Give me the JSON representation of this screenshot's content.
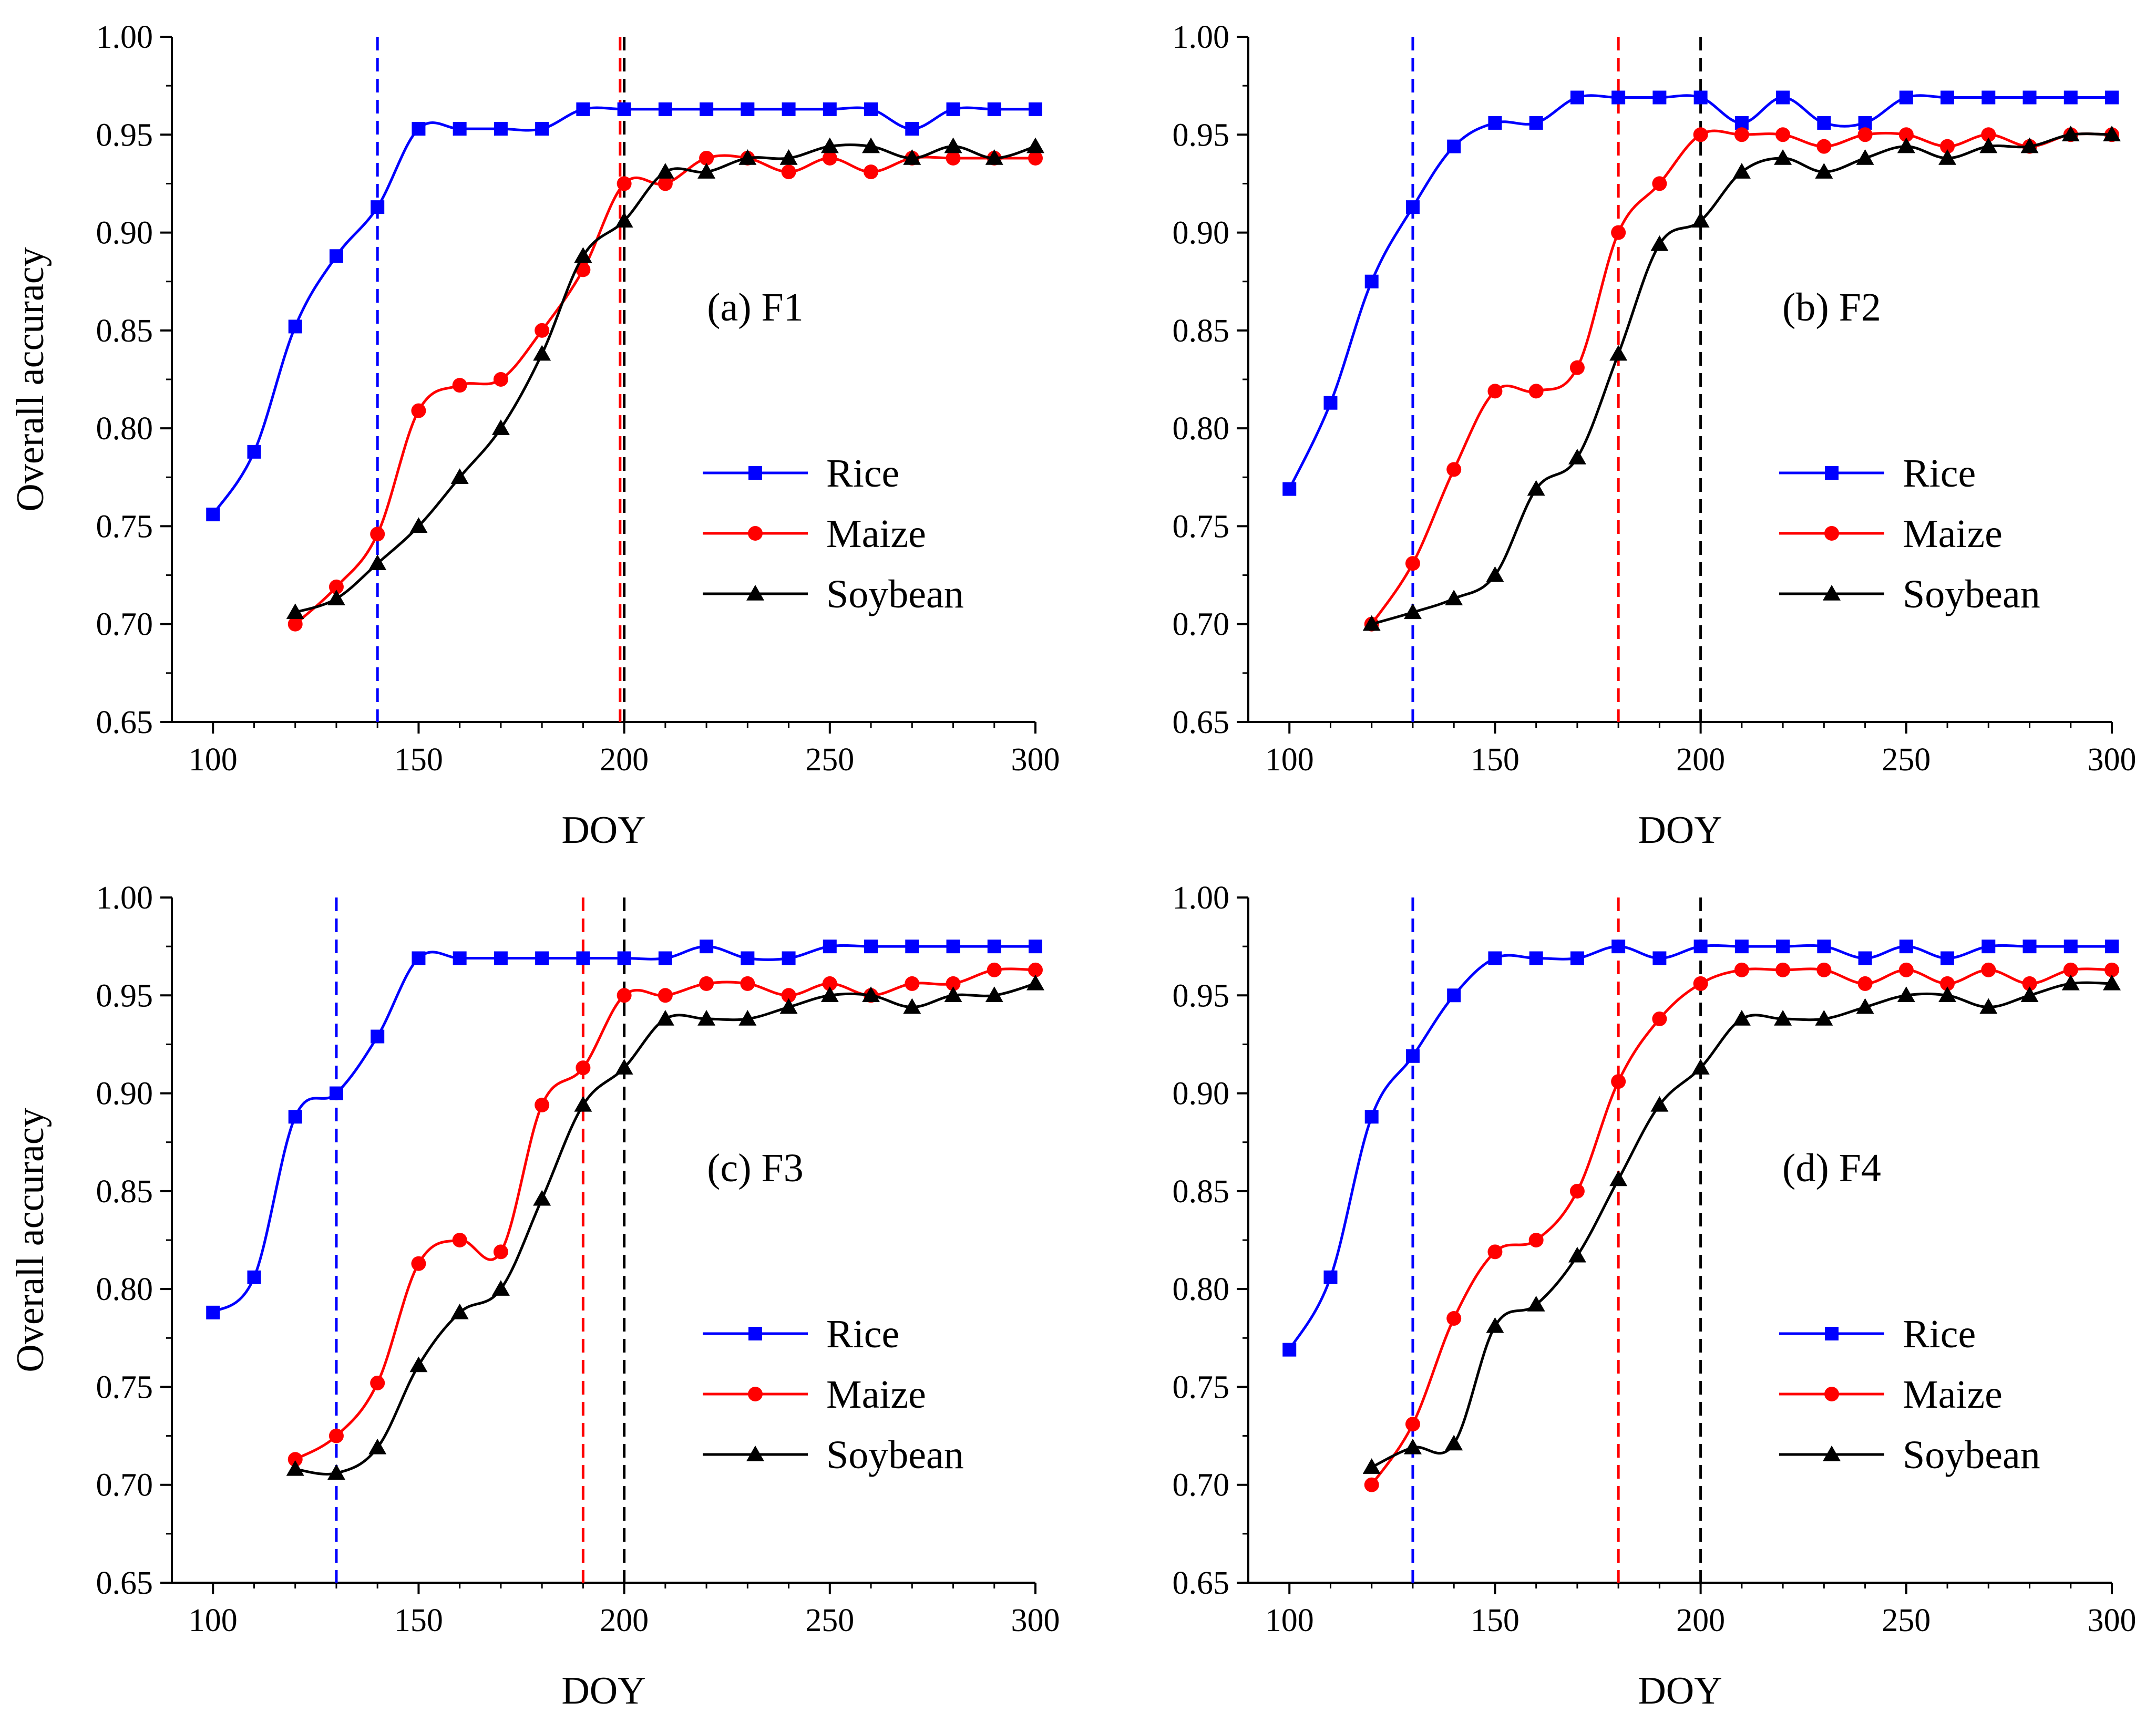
{
  "figure": {
    "x_axis_label": "DOY",
    "y_axis_label": "Overall accuracy"
  },
  "colors": {
    "Rice": "#0000ff",
    "Maize": "#ff0000",
    "Soybean": "#000000"
  },
  "chart_data": [
    {
      "type": "line",
      "title": "(a) F1",
      "xlabel": "DOY",
      "ylabel": "Overall accuracy",
      "xlim": [
        90,
        300
      ],
      "ylim": [
        0.65,
        1.0
      ],
      "xticks": [
        100,
        150,
        200,
        250,
        300
      ],
      "yticks": [
        0.65,
        0.7,
        0.75,
        0.8,
        0.85,
        0.9,
        0.95,
        1.0
      ],
      "legend_position": "right",
      "series": [
        {
          "name": "Rice",
          "marker": "square",
          "x": [
            100,
            110,
            120,
            130,
            140,
            150,
            160,
            170,
            180,
            190,
            200,
            210,
            220,
            230,
            240,
            250,
            260,
            270,
            280,
            290,
            300
          ],
          "y": [
            0.756,
            0.788,
            0.852,
            0.888,
            0.913,
            0.953,
            0.953,
            0.953,
            0.953,
            0.963,
            0.963,
            0.963,
            0.963,
            0.963,
            0.963,
            0.963,
            0.963,
            0.953,
            0.963,
            0.963,
            0.963
          ]
        },
        {
          "name": "Maize",
          "marker": "circle",
          "x": [
            120,
            130,
            140,
            150,
            160,
            170,
            180,
            190,
            200,
            210,
            220,
            230,
            240,
            250,
            260,
            270,
            280,
            290,
            300
          ],
          "y": [
            0.7,
            0.719,
            0.746,
            0.809,
            0.822,
            0.825,
            0.85,
            0.881,
            0.925,
            0.925,
            0.938,
            0.938,
            0.931,
            0.938,
            0.931,
            0.938,
            0.938,
            0.938,
            0.938
          ]
        },
        {
          "name": "Soybean",
          "marker": "triangle",
          "x": [
            120,
            130,
            140,
            150,
            160,
            170,
            180,
            190,
            200,
            210,
            220,
            230,
            240,
            250,
            260,
            270,
            280,
            290,
            300
          ],
          "y": [
            0.706,
            0.713,
            0.731,
            0.75,
            0.775,
            0.8,
            0.838,
            0.888,
            0.906,
            0.931,
            0.931,
            0.938,
            0.938,
            0.944,
            0.944,
            0.938,
            0.944,
            0.938,
            0.944
          ]
        }
      ],
      "vlines": [
        {
          "x": 140,
          "color": "#0000ff"
        },
        {
          "x": 199,
          "color": "#ff0000"
        },
        {
          "x": 200,
          "color": "#000000"
        }
      ]
    },
    {
      "type": "line",
      "title": "(b) F2",
      "xlabel": "DOY",
      "ylabel": "",
      "xlim": [
        90,
        300
      ],
      "ylim": [
        0.65,
        1.0
      ],
      "xticks": [
        100,
        150,
        200,
        250,
        300
      ],
      "yticks": [
        0.65,
        0.7,
        0.75,
        0.8,
        0.85,
        0.9,
        0.95,
        1.0
      ],
      "legend_position": "right",
      "series": [
        {
          "name": "Rice",
          "marker": "square",
          "x": [
            100,
            110,
            120,
            130,
            140,
            150,
            160,
            170,
            180,
            190,
            200,
            210,
            220,
            230,
            240,
            250,
            260,
            270,
            280,
            290,
            300
          ],
          "y": [
            0.769,
            0.813,
            0.875,
            0.913,
            0.944,
            0.956,
            0.956,
            0.969,
            0.969,
            0.969,
            0.969,
            0.956,
            0.969,
            0.956,
            0.956,
            0.969,
            0.969,
            0.969,
            0.969,
            0.969,
            0.969
          ]
        },
        {
          "name": "Maize",
          "marker": "circle",
          "x": [
            120,
            130,
            140,
            150,
            160,
            170,
            180,
            190,
            200,
            210,
            220,
            230,
            240,
            250,
            260,
            270,
            280,
            290,
            300
          ],
          "y": [
            0.7,
            0.731,
            0.779,
            0.819,
            0.819,
            0.831,
            0.9,
            0.925,
            0.95,
            0.95,
            0.95,
            0.944,
            0.95,
            0.95,
            0.944,
            0.95,
            0.944,
            0.95,
            0.95
          ]
        },
        {
          "name": "Soybean",
          "marker": "triangle",
          "x": [
            120,
            130,
            140,
            150,
            160,
            170,
            180,
            190,
            200,
            210,
            220,
            230,
            240,
            250,
            260,
            270,
            280,
            290,
            300
          ],
          "y": [
            0.7,
            0.706,
            0.713,
            0.725,
            0.769,
            0.785,
            0.838,
            0.894,
            0.906,
            0.931,
            0.938,
            0.931,
            0.938,
            0.944,
            0.938,
            0.944,
            0.944,
            0.95,
            0.95
          ]
        }
      ],
      "vlines": [
        {
          "x": 130,
          "color": "#0000ff"
        },
        {
          "x": 180,
          "color": "#ff0000"
        },
        {
          "x": 200,
          "color": "#000000"
        }
      ]
    },
    {
      "type": "line",
      "title": "(c) F3",
      "xlabel": "DOY",
      "ylabel": "Overall accuracy",
      "xlim": [
        90,
        300
      ],
      "ylim": [
        0.65,
        1.0
      ],
      "xticks": [
        100,
        150,
        200,
        250,
        300
      ],
      "yticks": [
        0.65,
        0.7,
        0.75,
        0.8,
        0.85,
        0.9,
        0.95,
        1.0
      ],
      "legend_position": "right",
      "series": [
        {
          "name": "Rice",
          "marker": "square",
          "x": [
            100,
            110,
            120,
            130,
            140,
            150,
            160,
            170,
            180,
            190,
            200,
            210,
            220,
            230,
            240,
            250,
            260,
            270,
            280,
            290,
            300
          ],
          "y": [
            0.788,
            0.806,
            0.888,
            0.9,
            0.929,
            0.969,
            0.969,
            0.969,
            0.969,
            0.969,
            0.969,
            0.969,
            0.975,
            0.969,
            0.969,
            0.975,
            0.975,
            0.975,
            0.975,
            0.975,
            0.975
          ]
        },
        {
          "name": "Maize",
          "marker": "circle",
          "x": [
            120,
            130,
            140,
            150,
            160,
            170,
            180,
            190,
            200,
            210,
            220,
            230,
            240,
            250,
            260,
            270,
            280,
            290,
            300
          ],
          "y": [
            0.713,
            0.725,
            0.752,
            0.813,
            0.825,
            0.819,
            0.894,
            0.913,
            0.95,
            0.95,
            0.956,
            0.956,
            0.95,
            0.956,
            0.95,
            0.956,
            0.956,
            0.963,
            0.963
          ]
        },
        {
          "name": "Soybean",
          "marker": "triangle",
          "x": [
            120,
            130,
            140,
            150,
            160,
            170,
            180,
            190,
            200,
            210,
            220,
            230,
            240,
            250,
            260,
            270,
            280,
            290,
            300
          ],
          "y": [
            0.708,
            0.706,
            0.719,
            0.761,
            0.788,
            0.8,
            0.846,
            0.894,
            0.913,
            0.938,
            0.938,
            0.938,
            0.944,
            0.95,
            0.95,
            0.944,
            0.95,
            0.95,
            0.956
          ]
        }
      ],
      "vlines": [
        {
          "x": 130,
          "color": "#0000ff"
        },
        {
          "x": 190,
          "color": "#ff0000"
        },
        {
          "x": 200,
          "color": "#000000"
        }
      ]
    },
    {
      "type": "line",
      "title": "(d) F4",
      "xlabel": "DOY",
      "ylabel": "",
      "xlim": [
        90,
        300
      ],
      "ylim": [
        0.65,
        1.0
      ],
      "xticks": [
        100,
        150,
        200,
        250,
        300
      ],
      "yticks": [
        0.65,
        0.7,
        0.75,
        0.8,
        0.85,
        0.9,
        0.95,
        1.0
      ],
      "legend_position": "right",
      "series": [
        {
          "name": "Rice",
          "marker": "square",
          "x": [
            100,
            110,
            120,
            130,
            140,
            150,
            160,
            170,
            180,
            190,
            200,
            210,
            220,
            230,
            240,
            250,
            260,
            270,
            280,
            290,
            300
          ],
          "y": [
            0.769,
            0.806,
            0.888,
            0.919,
            0.95,
            0.969,
            0.969,
            0.969,
            0.975,
            0.969,
            0.975,
            0.975,
            0.975,
            0.975,
            0.969,
            0.975,
            0.969,
            0.975,
            0.975,
            0.975,
            0.975
          ]
        },
        {
          "name": "Maize",
          "marker": "circle",
          "x": [
            120,
            130,
            140,
            150,
            160,
            170,
            180,
            190,
            200,
            210,
            220,
            230,
            240,
            250,
            260,
            270,
            280,
            290,
            300
          ],
          "y": [
            0.7,
            0.731,
            0.785,
            0.819,
            0.825,
            0.85,
            0.906,
            0.938,
            0.956,
            0.963,
            0.963,
            0.963,
            0.956,
            0.963,
            0.956,
            0.963,
            0.956,
            0.963,
            0.963
          ]
        },
        {
          "name": "Soybean",
          "marker": "triangle",
          "x": [
            120,
            130,
            140,
            150,
            160,
            170,
            180,
            190,
            200,
            210,
            220,
            230,
            240,
            250,
            260,
            270,
            280,
            290,
            300
          ],
          "y": [
            0.709,
            0.719,
            0.721,
            0.781,
            0.792,
            0.817,
            0.856,
            0.894,
            0.913,
            0.938,
            0.938,
            0.938,
            0.944,
            0.95,
            0.95,
            0.944,
            0.95,
            0.956,
            0.956
          ]
        }
      ],
      "vlines": [
        {
          "x": 130,
          "color": "#0000ff"
        },
        {
          "x": 180,
          "color": "#ff0000"
        },
        {
          "x": 200,
          "color": "#000000"
        }
      ]
    }
  ]
}
